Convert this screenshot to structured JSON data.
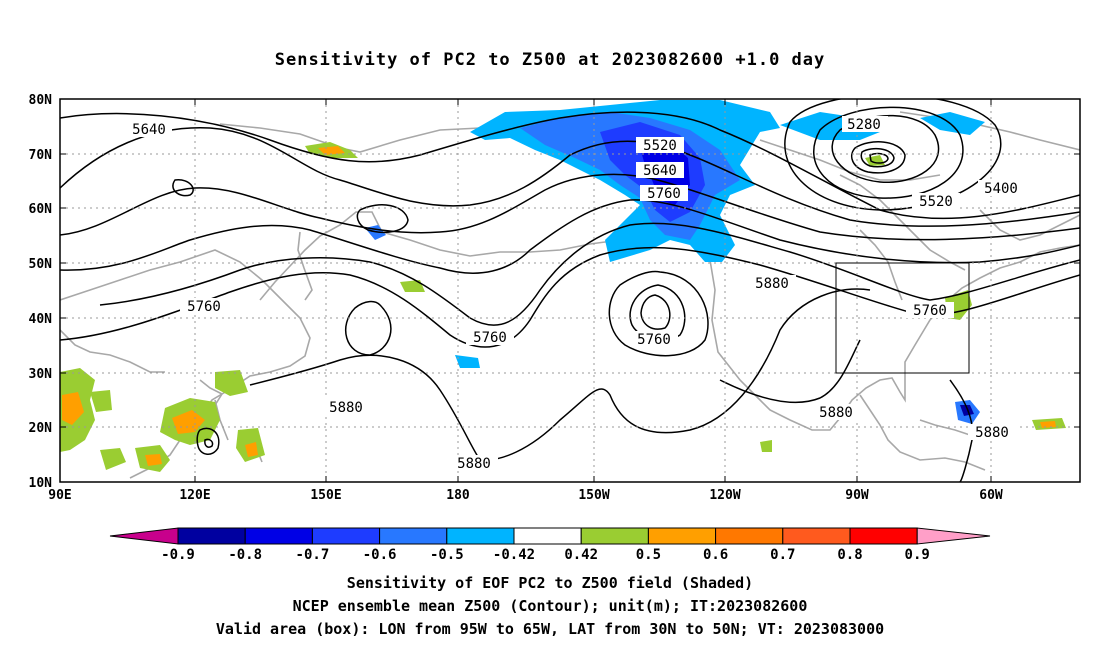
{
  "title": "Sensitivity of PC2 to Z500 at 2023082600 +1.0 day",
  "axes": {
    "lat_labels": [
      "80N",
      "70N",
      "60N",
      "50N",
      "40N",
      "30N",
      "20N",
      "10N"
    ],
    "lon_labels": [
      "90E",
      "120E",
      "150E",
      "180",
      "150W",
      "120W",
      "90W",
      "60W"
    ]
  },
  "contour_labels": {
    "c5640_left": "5640",
    "c5520_top": "5520",
    "c5640_mid": "5640",
    "c5760_mid": "5760",
    "c5280": "5280",
    "c5400": "5400",
    "c5520_right": "5520",
    "c5880_mid": "5880",
    "c5760_left": "5760",
    "c5760_low": "5760",
    "c5760_low2": "5760",
    "c5760_box": "5760",
    "c5880_left": "5880",
    "c5880_bottom": "5880",
    "c5880_gulf": "5880",
    "c5880_atl": "5880"
  },
  "colorbar": {
    "labels": [
      "-0.9",
      "-0.8",
      "-0.7",
      "-0.6",
      "-0.5",
      "-0.42",
      "0.42",
      "0.5",
      "0.6",
      "0.7",
      "0.8",
      "0.9"
    ],
    "colors": [
      "#0000a0",
      "#0000e6",
      "#1e3cff",
      "#2878ff",
      "#00b4ff",
      "#ffffff",
      "#9acd32",
      "#ff9f00",
      "#ff7800",
      "#ff5a1e",
      "#ff0000"
    ],
    "end_low": "#c8008c",
    "end_high": "#ff9fc8"
  },
  "valid_box": {
    "lon_from": "95W",
    "lon_to": "65W",
    "lat_from": "30N",
    "lat_to": "50N"
  },
  "captions": {
    "line1": "Sensitivity of EOF PC2 to Z500 field (Shaded)",
    "line2": "NCEP ensemble mean Z500 (Contour); unit(m); IT:2023082600",
    "line3": "Valid area (box): LON from 95W to 65W, LAT from 30N to 50N; VT: 2023083000"
  }
}
